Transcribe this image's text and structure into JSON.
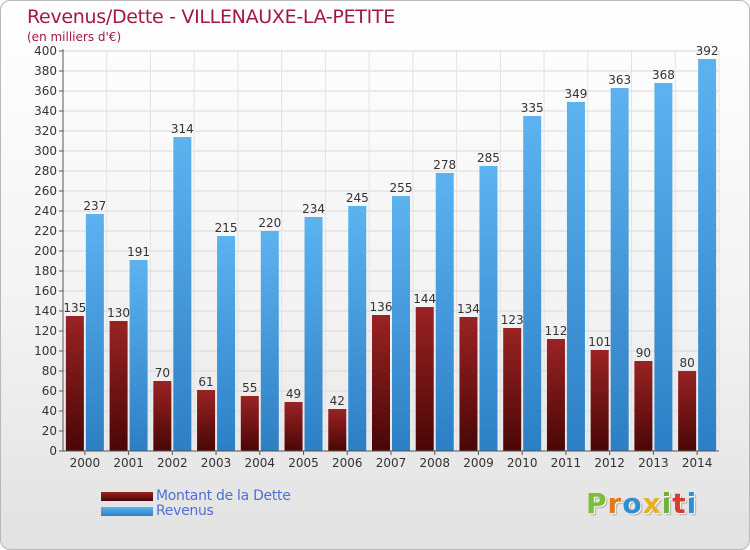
{
  "title": "Revenus/Dette - VILLENAUXE-LA-PETITE",
  "subtitle": "(en milliers d'€)",
  "colors": {
    "title": "#a3193c",
    "debt": "#7a1010",
    "revenue": "#4aa3e6",
    "legend_text": "#4f6fd6"
  },
  "legend": {
    "debt_label": "Montant de la Dette",
    "revenue_label": "Revenus"
  },
  "logo": {
    "letters": [
      "P",
      "r",
      "o",
      "x",
      "i",
      "t",
      "i"
    ],
    "colors": [
      "#7bbf3a",
      "#e07b1a",
      "#2f8fd0",
      "#e8b21e",
      "#6cb23a",
      "#d23f2a",
      "#2f8fd0"
    ]
  },
  "chart_data": {
    "type": "bar",
    "title": "Revenus/Dette - VILLENAUXE-LA-PETITE",
    "subtitle": "(en milliers d'€)",
    "categories": [
      "2000",
      "2001",
      "2002",
      "2003",
      "2004",
      "2005",
      "2006",
      "2007",
      "2008",
      "2009",
      "2010",
      "2011",
      "2012",
      "2013",
      "2014"
    ],
    "series": [
      {
        "name": "Montant de la Dette",
        "values": [
          135,
          130,
          70,
          61,
          55,
          49,
          42,
          136,
          144,
          134,
          123,
          112,
          101,
          90,
          80
        ]
      },
      {
        "name": "Revenus",
        "values": [
          237,
          191,
          314,
          215,
          220,
          234,
          245,
          255,
          278,
          285,
          335,
          349,
          363,
          368,
          392
        ]
      }
    ],
    "ylim": [
      0,
      400
    ],
    "ytick_step": 20,
    "grid": true,
    "legend_position": "bottom-left"
  }
}
